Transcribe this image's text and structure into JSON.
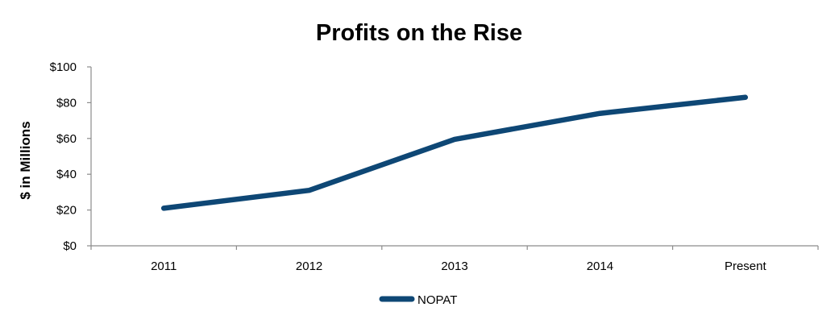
{
  "chart_data": {
    "type": "line",
    "title": "Profits on the Rise",
    "xlabel": "",
    "ylabel": "$ in Millions",
    "categories": [
      "2011",
      "2012",
      "2013",
      "2014",
      "Present"
    ],
    "series": [
      {
        "name": "NOPAT",
        "values": [
          21,
          31,
          59.5,
          74,
          83
        ],
        "color": "#0e4775"
      }
    ],
    "ylim": [
      0,
      100
    ],
    "yticks": [
      0,
      20,
      40,
      60,
      80,
      100
    ],
    "ytick_labels": [
      "$0",
      "$20",
      "$40",
      "$60",
      "$80",
      "$100"
    ],
    "grid": false,
    "legend_position": "bottom"
  }
}
